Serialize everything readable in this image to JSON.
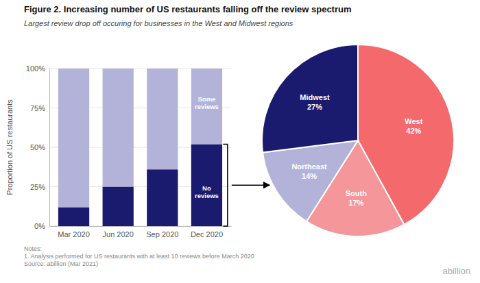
{
  "chart_data": [
    {
      "type": "bar",
      "title": "Figure 2. Increasing number of US restaurants falling off the review spectrum",
      "subtitle": "Largest review drop off occuring for businesses in the West and Midwest regions",
      "categories": [
        "Mar 2020",
        "Jun 2020",
        "Sep 2020",
        "Dec 2020"
      ],
      "series": [
        {
          "name": "No\nreviews",
          "color": "#1a1a6e",
          "values": [
            0.12,
            0.25,
            0.36,
            0.52
          ]
        },
        {
          "name": "Some\nreviews",
          "color": "#b3b3d9",
          "values": [
            0.88,
            0.75,
            0.64,
            0.48
          ]
        }
      ],
      "stacked": true,
      "ylabel": "Proportion of US restaurants",
      "ylim": [
        0,
        1.0
      ],
      "yticks": [
        {
          "value": 0,
          "label": "0%"
        },
        {
          "value": 0.25,
          "label": "25%"
        },
        {
          "value": 0.5,
          "label": "50%"
        },
        {
          "value": 0.75,
          "label": "75%"
        },
        {
          "value": 1.0,
          "label": "100%"
        }
      ],
      "grid": true,
      "annotations": [
        "Notes:\n1. Analysis performed for US restaurants with at least 10 reviews before March 2020\nSource: abillion (Mar 2021)",
        "abillion"
      ]
    },
    {
      "type": "pie",
      "categories": [
        "West",
        "South",
        "Northeast",
        "Midwest"
      ],
      "values": [
        42,
        17,
        14,
        27
      ],
      "value_labels": [
        "42%",
        "17%",
        "14%",
        "27%"
      ],
      "colors": [
        "#f4696b",
        "#f4969a",
        "#b3b3d9",
        "#1a1a6e"
      ],
      "data_labels": true
    }
  ]
}
